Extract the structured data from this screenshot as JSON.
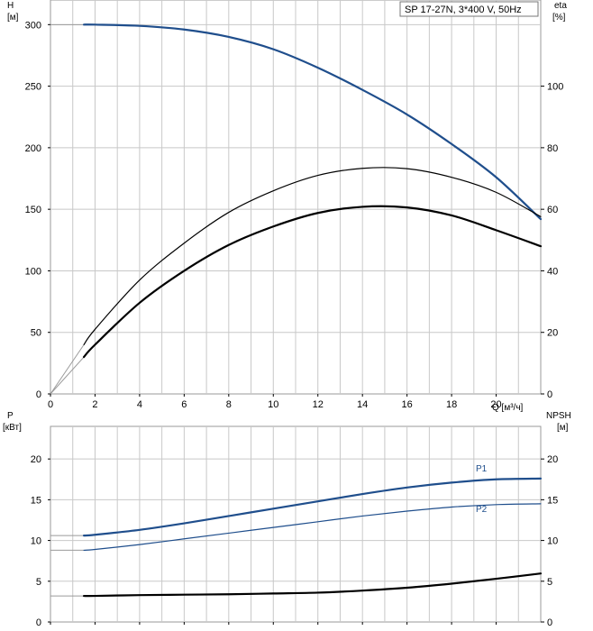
{
  "chart_data": [
    {
      "type": "line",
      "title": "SP 17-27N, 3*400 V, 50Hz",
      "x_label": "Q [м³/ч]",
      "y_left_label": [
        "H",
        "[м]"
      ],
      "y_right_label": [
        "eta",
        "[%]"
      ],
      "x_range": [
        0,
        22
      ],
      "x_ticks": [
        0,
        2,
        4,
        6,
        8,
        10,
        12,
        14,
        16,
        18,
        20
      ],
      "y_left_range": [
        0,
        320
      ],
      "y_left_ticks": [
        0,
        50,
        100,
        150,
        200,
        250,
        300
      ],
      "y_right_range": [
        0,
        128
      ],
      "y_right_ticks": [
        0,
        20,
        40,
        60,
        80,
        100
      ],
      "grid": true,
      "series": [
        {
          "axis": "left",
          "color": "#1f4e8c",
          "width": 2.2,
          "x": [
            1.5,
            2,
            4,
            6,
            8,
            10,
            12,
            14,
            16,
            18,
            20,
            22
          ],
          "y": [
            300,
            300,
            299,
            296,
            290,
            280,
            265,
            247,
            227,
            203,
            176,
            142
          ],
          "lead": {
            "x": [
              0,
              1.5
            ],
            "y": [
              300,
              300
            ]
          }
        },
        {
          "axis": "right",
          "color": "#000000",
          "width": 1.2,
          "x": [
            1.5,
            2,
            4,
            6,
            8,
            10,
            12,
            14,
            16,
            18,
            20,
            22
          ],
          "y": [
            16,
            21,
            37,
            49,
            59,
            66,
            71,
            73.3,
            73.2,
            70.4,
            65.5,
            57.6
          ],
          "lead": {
            "x": [
              0,
              1.5
            ],
            "y": [
              0,
              16
            ]
          }
        },
        {
          "axis": "right",
          "color": "#000000",
          "width": 2.2,
          "x": [
            1.5,
            2,
            4,
            6,
            8,
            10,
            12,
            14,
            16,
            18,
            20,
            22
          ],
          "y": [
            12,
            16,
            29.6,
            40,
            48.4,
            54.4,
            58.8,
            60.8,
            60.6,
            58,
            53.2,
            48
          ],
          "lead": {
            "x": [
              0,
              1.5
            ],
            "y": [
              0,
              12
            ]
          }
        }
      ]
    },
    {
      "type": "line",
      "y_left_label": [
        "P",
        "[кВт]"
      ],
      "y_right_label": [
        "NPSH",
        "[м]"
      ],
      "x_range": [
        0,
        22
      ],
      "x_ticks": [
        0,
        2,
        4,
        6,
        8,
        10,
        12,
        14,
        16,
        18,
        20
      ],
      "y_left_range": [
        0,
        24
      ],
      "y_left_ticks": [
        0,
        5,
        10,
        15,
        20
      ],
      "y_right_range": [
        0,
        24
      ],
      "y_right_ticks": [
        0,
        5,
        10,
        15,
        20
      ],
      "grid": true,
      "series": [
        {
          "name": "P1",
          "axis": "left",
          "color": "#1f4e8c",
          "width": 2.2,
          "x": [
            1.5,
            2,
            4,
            6,
            8,
            10,
            12,
            14,
            16,
            18,
            20,
            22
          ],
          "y": [
            10.6,
            10.7,
            11.3,
            12.1,
            13,
            13.9,
            14.8,
            15.7,
            16.5,
            17.1,
            17.5,
            17.6
          ],
          "lead": {
            "x": [
              0,
              1.5
            ],
            "y": [
              10.6,
              10.6
            ]
          }
        },
        {
          "name": "P2",
          "axis": "left",
          "color": "#1f4e8c",
          "width": 1.2,
          "x": [
            1.5,
            2,
            4,
            6,
            8,
            10,
            12,
            14,
            16,
            18,
            20,
            22
          ],
          "y": [
            8.8,
            8.9,
            9.5,
            10.2,
            10.9,
            11.6,
            12.3,
            13,
            13.6,
            14.1,
            14.4,
            14.5
          ],
          "lead": {
            "x": [
              0,
              1.5
            ],
            "y": [
              8.8,
              8.8
            ]
          }
        },
        {
          "axis": "right",
          "color": "#000000",
          "width": 2.2,
          "x": [
            1.5,
            2,
            4,
            6,
            8,
            10,
            12,
            14,
            16,
            18,
            20,
            22
          ],
          "y": [
            3.2,
            3.2,
            3.3,
            3.35,
            3.4,
            3.5,
            3.6,
            3.85,
            4.2,
            4.7,
            5.3,
            5.95
          ],
          "lead": {
            "x": [
              0,
              1.5
            ],
            "y": [
              3.2,
              3.2
            ]
          }
        }
      ]
    }
  ]
}
